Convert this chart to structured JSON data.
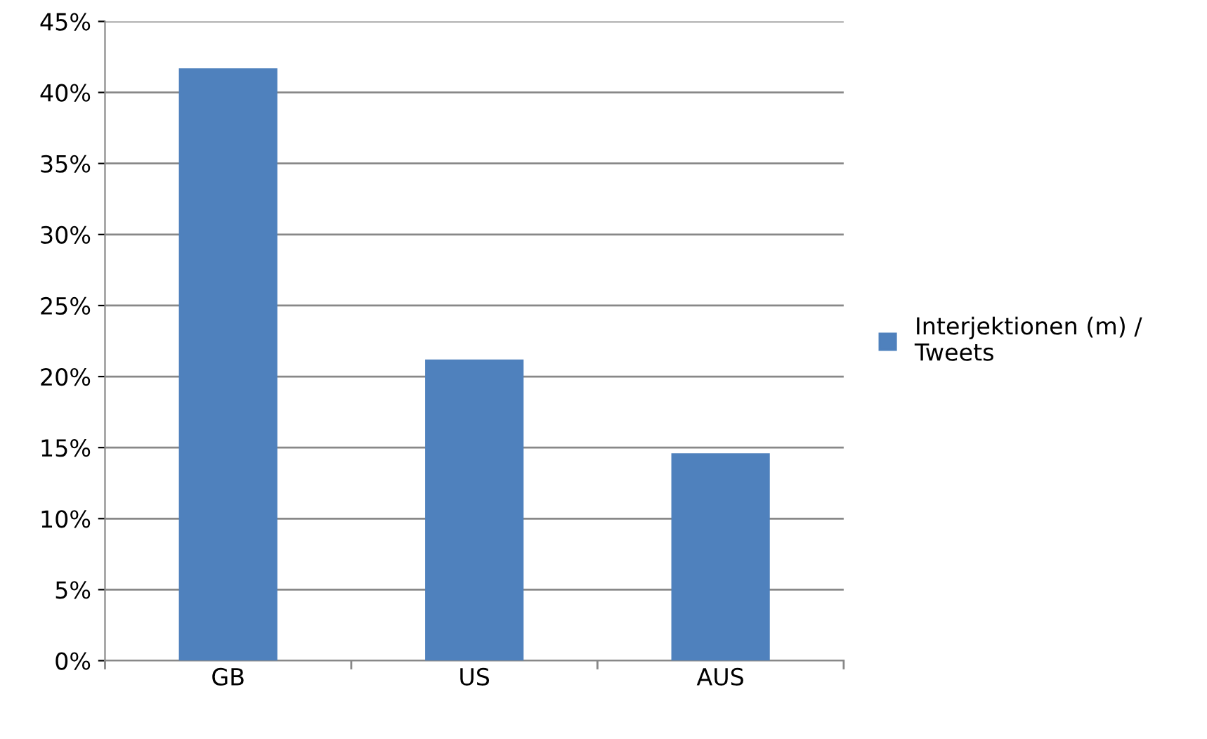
{
  "chart_data": {
    "type": "bar",
    "categories": [
      "GB",
      "US",
      "AUS"
    ],
    "series": [
      {
        "name": "Interjektionen (m) /\nTweets",
        "color": "#4f81bd",
        "values": [
          41.7,
          21.2,
          14.6
        ]
      }
    ],
    "ylim": [
      0,
      45
    ],
    "yticks": [
      {
        "value": 0,
        "label": "0%"
      },
      {
        "value": 5,
        "label": "5%"
      },
      {
        "value": 10,
        "label": "10%"
      },
      {
        "value": 15,
        "label": "15%"
      },
      {
        "value": 20,
        "label": "20%"
      },
      {
        "value": 25,
        "label": "25%"
      },
      {
        "value": 30,
        "label": "30%"
      },
      {
        "value": 35,
        "label": "35%"
      },
      {
        "value": 40,
        "label": "40%"
      },
      {
        "value": 45,
        "label": "45%"
      }
    ],
    "grid": "y",
    "legend": "right"
  }
}
